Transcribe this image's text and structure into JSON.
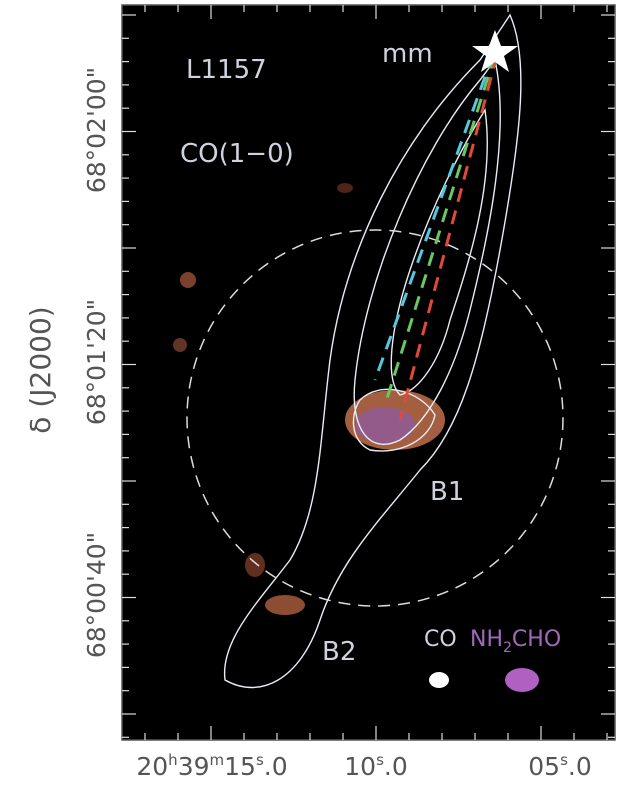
{
  "labels": {
    "source": "L1157",
    "line": "CO(1−0)",
    "mm": "mm",
    "b1": "B1",
    "b2": "B2"
  },
  "beams": {
    "co": "CO",
    "nh2cho": [
      "NH",
      "2",
      "CHO"
    ]
  },
  "axes": {
    "y_label": "δ (J2000)",
    "y_ticks": [
      "68°02'00\"",
      "68°01'20\"",
      "68°00'40\""
    ],
    "x_ticks": [
      [
        "20",
        "h",
        "39",
        "m",
        "15",
        "s",
        ".0"
      ],
      [
        "10",
        "s",
        ".0"
      ],
      [
        "05",
        "s",
        ".0"
      ]
    ]
  }
}
